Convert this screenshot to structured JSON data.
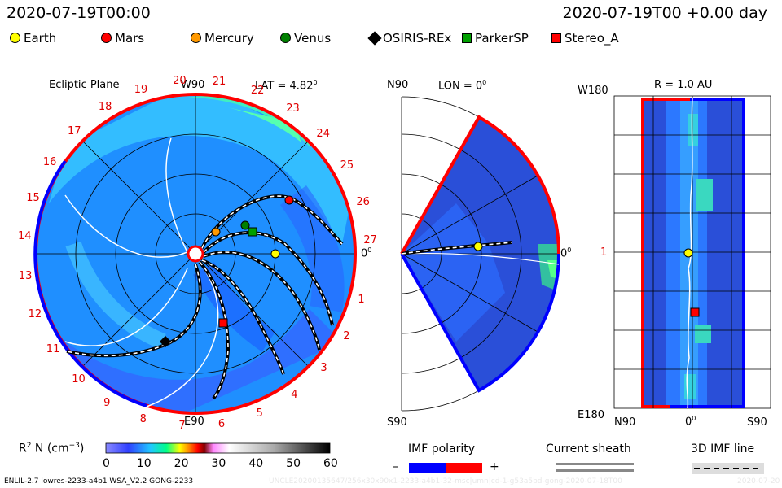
{
  "header": {
    "timestamp": "2020-07-19T00:00",
    "relative": "2020-07-19T00 +0.00 day"
  },
  "legend": [
    {
      "name": "Earth",
      "shape": "circle",
      "color": "#ffff00"
    },
    {
      "name": "Mars",
      "shape": "circle",
      "color": "#ff0000"
    },
    {
      "name": "Mercury",
      "shape": "circle",
      "color": "#ff9900"
    },
    {
      "name": "Venus",
      "shape": "circle",
      "color": "#008000"
    },
    {
      "name": "OSIRIS-REx",
      "shape": "diamond",
      "color": "#000000"
    },
    {
      "name": "ParkerSP",
      "shape": "square",
      "color": "#00a000"
    },
    {
      "name": "Stereo_A",
      "shape": "square",
      "color": "#ff0000"
    }
  ],
  "panel1": {
    "title": "Ecliptic Plane",
    "top_label": "W90",
    "lat_label": "LAT = 4.82",
    "lat_sup": "0",
    "bottom_label": "E90",
    "zero_label": "0",
    "zero_sup": "0",
    "carrington_ticks": [
      "1",
      "2",
      "3",
      "4",
      "5",
      "6",
      "7",
      "8",
      "9",
      "10",
      "11",
      "12",
      "13",
      "14",
      "15",
      "16",
      "17",
      "18",
      "19",
      "20",
      "21",
      "22",
      "23",
      "24",
      "25",
      "26",
      "27"
    ]
  },
  "panel2": {
    "top_label": "N90",
    "lon_label": "LON = 0",
    "lon_sup": "0",
    "bottom_label": "S90",
    "zero_label": "0",
    "zero_sup": "0"
  },
  "panel3": {
    "r_label": "R = 1.0 AU",
    "left_top": "W180",
    "left_mid": "1",
    "left_bottom": "E180",
    "x_left": "N90",
    "x_mid": "0",
    "x_mid_sup": "0",
    "x_right": "S90"
  },
  "colorbar": {
    "label": "R",
    "label_sup": "2",
    "label_rest": " N (cm",
    "label_exp": "−3",
    "label_end": ")",
    "ticks": [
      "0",
      "10",
      "20",
      "30",
      "40",
      "50",
      "60"
    ]
  },
  "imf": {
    "title": "IMF polarity",
    "minus": "–",
    "plus": "+",
    "colors": [
      "#0000ff",
      "#ff0000"
    ]
  },
  "current_sheath": {
    "title": "Current sheath"
  },
  "imf_line": {
    "title": "3D IMF line"
  },
  "footer": {
    "left": "ENLIL-2.7 lowres-2233-a4b1 WSA_V2.2 GONG-2233",
    "faint": "UNCLE20200135647/256x30x90x1-2233-a4b1-32-msc|umn|cd-1-g53a5bd-gong-2020-07-18T00",
    "faint_right": "2020-07-20"
  }
}
